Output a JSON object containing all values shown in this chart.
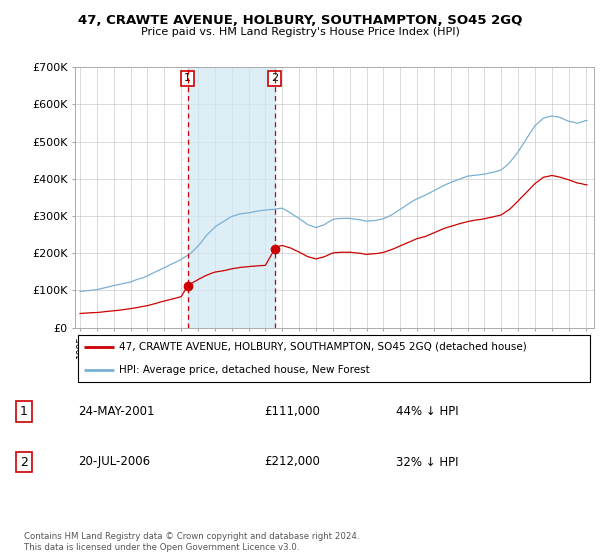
{
  "title": "47, CRAWTE AVENUE, HOLBURY, SOUTHAMPTON, SO45 2GQ",
  "subtitle": "Price paid vs. HM Land Registry's House Price Index (HPI)",
  "legend_line1": "47, CRAWTE AVENUE, HOLBURY, SOUTHAMPTON, SO45 2GQ (detached house)",
  "legend_line2": "HPI: Average price, detached house, New Forest",
  "annotation1_date": "24-MAY-2001",
  "annotation1_price": "£111,000",
  "annotation1_hpi": "44% ↓ HPI",
  "annotation2_date": "20-JUL-2006",
  "annotation2_price": "£212,000",
  "annotation2_hpi": "32% ↓ HPI",
  "footnote": "Contains HM Land Registry data © Crown copyright and database right 2024.\nThis data is licensed under the Open Government Licence v3.0.",
  "red_line_color": "#cc0000",
  "blue_line_color": "#7ab0d4",
  "background_color": "#ffffff",
  "grid_color": "#cccccc",
  "ylim": [
    0,
    700000
  ],
  "yticks": [
    0,
    100000,
    200000,
    300000,
    400000,
    500000,
    600000,
    700000
  ],
  "ytick_labels": [
    "£0",
    "£100K",
    "£200K",
    "£300K",
    "£400K",
    "£500K",
    "£600K",
    "£700K"
  ],
  "sale1_x": 2001.38,
  "sale1_y": 111000,
  "sale2_x": 2006.55,
  "sale2_y": 212000,
  "vline1_x": 2001.38,
  "vline2_x": 2006.55,
  "highlight_start": 2001.38,
  "highlight_end": 2006.55,
  "xlim_min": 1994.7,
  "xlim_max": 2025.5
}
